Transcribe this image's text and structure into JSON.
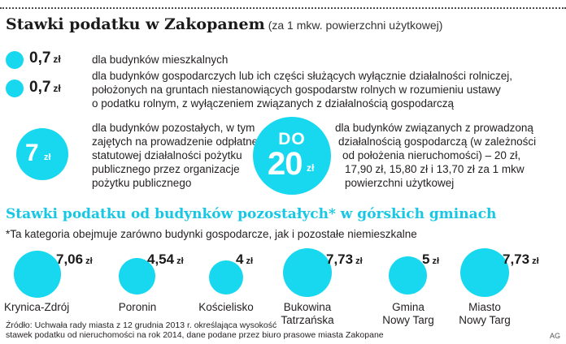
{
  "header": {
    "title": "Stawki podatku w Zakopanem",
    "subtitle": "(za 1 mkw. powierzchni użytkowej)"
  },
  "rates": [
    {
      "value": "0,7",
      "unit": "zł",
      "lines": [
        "dla budynków mieszkalnych"
      ]
    },
    {
      "value": "0,7",
      "unit": "zł",
      "lines": [
        "dla budynków gospodarczych lub ich części służących wyłącznie działalności rolniczej,",
        "położonych na  gruntach niestanowiących gospodarstw rolnych w rozumieniu ustawy",
        "o podatku rolnym, z wyłączeniem związanych z działalnością gospodarczą"
      ]
    }
  ],
  "other_buildings": {
    "value": "7",
    "unit": "zł",
    "lines": [
      "dla budynków pozostałych, w tym",
      "zajętych na prowadzenie odpłatnej",
      "statutowej działalności pożytku",
      "publicznego przez organizacje",
      "pożytku publicznego"
    ]
  },
  "business_buildings": {
    "prefix": "DO",
    "value": "20",
    "unit": "zł",
    "lines": [
      "dla budynków związanych z prowadzoną",
      "działalnością gospodarczą (w zależności",
      "od położenia nieruchomości) – 20 zł,",
      "17,90 zł, 15,80 zł i 13,70 zł za 1 mkw",
      "powierzchni użytkowej"
    ]
  },
  "mountain": {
    "title": "Stawki podatku od budynków pozostałych* w górskich gminach",
    "note": "*Ta kategoria obejmuje zarówno budynki gospodarcze, jak i pozostałe niemieszkalne",
    "towns": [
      {
        "name_lines": [
          "Krynica-Zdrój"
        ],
        "value": "7,06",
        "unit": "zł"
      },
      {
        "name_lines": [
          "Poronin"
        ],
        "value": "4,54",
        "unit": "zł"
      },
      {
        "name_lines": [
          "Kościelisko"
        ],
        "value": "4",
        "unit": "zł"
      },
      {
        "name_lines": [
          "Bukowina",
          "Tatrzańska"
        ],
        "value": "7,73",
        "unit": "zł"
      },
      {
        "name_lines": [
          "Gmina",
          "Nowy Targ"
        ],
        "value": "5",
        "unit": "zł"
      },
      {
        "name_lines": [
          "Miasto",
          "Nowy Targ"
        ],
        "value": "7,73",
        "unit": "zł"
      }
    ]
  },
  "source": {
    "lines": [
      "Źródło: Uchwała rady miasta z 12 grudnia 2013 r. określająca wysokość",
      "stawek podatku od nieruchomości na rok 2014, dane podane przez biuro prasowe miasta Zakopane"
    ],
    "credit": "AG"
  },
  "colors": {
    "accent": "#18d8f0",
    "heading_accent": "#18c7e4",
    "text": "#231f20"
  }
}
